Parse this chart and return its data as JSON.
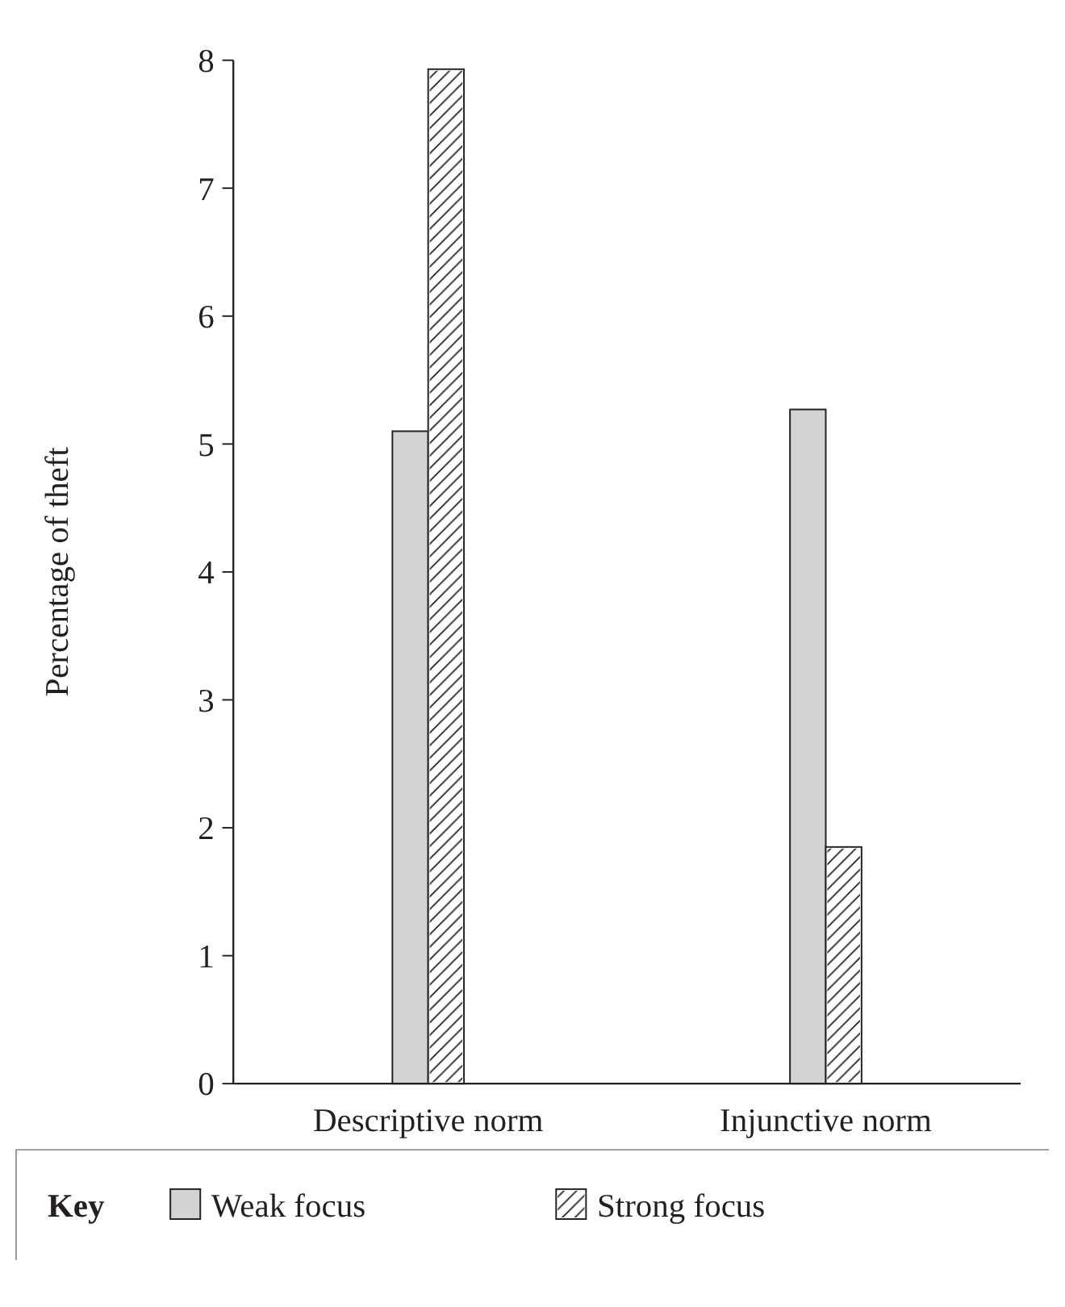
{
  "chart_data": {
    "type": "bar",
    "ylabel": "Percentage of theft",
    "legend_title": "Key",
    "categories": [
      "Descriptive norm",
      "Injunctive norm"
    ],
    "series": [
      {
        "name": "Weak focus",
        "color": "#d1d3d4",
        "values": [
          5.1,
          5.27
        ]
      },
      {
        "name": "Strong focus",
        "color": "#ffffff",
        "values": [
          7.93,
          1.85
        ]
      }
    ],
    "ylim": [
      0,
      8
    ],
    "yticks": [
      0,
      1,
      2,
      3,
      4,
      5,
      6,
      7,
      8
    ],
    "legend": "bottom"
  }
}
